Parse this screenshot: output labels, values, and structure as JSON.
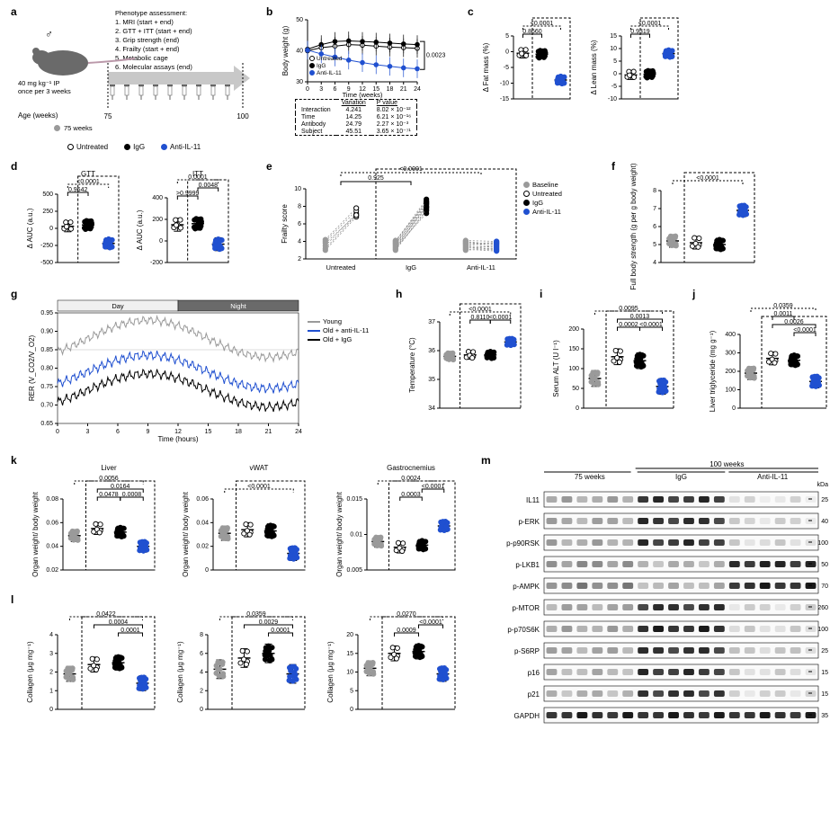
{
  "colors": {
    "untreated_open": "#ffffff",
    "untreated_stroke": "#000000",
    "igg": "#000000",
    "anti": "#2050d0",
    "baseline": "#9a9a9a",
    "young": "#9a9a9a",
    "grid": "#dcdcdc",
    "day_bg": "#f0f0f0",
    "night_bg": "#6a6a6a"
  },
  "panel_a": {
    "label": "a",
    "title_lines": [
      "Phenotype assessment:",
      "1. MRI (start + end)",
      "2. GTT + ITT (start + end)",
      "3. Grip strength (end)",
      "4. Frailty (start + end)",
      "5. Metabolic cage",
      "6. Molecular assays (end)"
    ],
    "dose": "40 mg kg⁻¹ IP",
    "freq": "once per 3 weeks",
    "age_label": "Age (weeks)",
    "start_wk": "75",
    "end_wk": "100",
    "baseline_note": "75 weeks"
  },
  "legend_global": {
    "untreated": "Untreated",
    "igg": "IgG",
    "anti": "Anti-IL-11"
  },
  "panel_b": {
    "label": "b",
    "ylabel": "Body weight (g)",
    "xlabel": "Time (weeks)",
    "ylim": [
      30,
      50
    ],
    "yticks": [
      30,
      40,
      50
    ],
    "xticks": [
      0,
      3,
      6,
      9,
      12,
      15,
      18,
      21,
      24
    ],
    "series": {
      "untreated": [
        40,
        41,
        41.5,
        42,
        41.8,
        41.5,
        41.2,
        41,
        40.8
      ],
      "igg": [
        40.5,
        42,
        43,
        43.2,
        43,
        42.8,
        42.5,
        42.2,
        42
      ],
      "anti": [
        40.2,
        39,
        38,
        37,
        36.2,
        35.5,
        35,
        34.5,
        34.2
      ]
    },
    "err": 3,
    "bracket_p": "0.0023",
    "table": {
      "header": [
        "",
        "Variation",
        "P value"
      ],
      "rows": [
        [
          "Interaction",
          "4.241",
          "8.02 × 10⁻¹²"
        ],
        [
          "Time",
          "14.25",
          "6.21 × 10⁻¹⁶"
        ],
        [
          "Antibody",
          "24.79",
          "2.27 × 10⁻³"
        ],
        [
          "Subject",
          "45.51",
          "3.65 × 10⁻⁷¹"
        ]
      ]
    }
  },
  "panel_c": {
    "label": "c",
    "fat": {
      "ylabel": "Δ Fat mass (%)",
      "ylim": [
        -15,
        5
      ],
      "yticks": [
        -15,
        -10,
        -5,
        0,
        5
      ],
      "p_top": "<0.0001",
      "p_left": "0.8660",
      "groups": [
        "Untreated",
        "IgG",
        "Anti-IL-11"
      ],
      "means": [
        -0.5,
        -0.8,
        -9
      ],
      "scatter_n": [
        6,
        12,
        12
      ]
    },
    "lean": {
      "ylabel": "Δ Lean mass (%)",
      "ylim": [
        -10,
        15
      ],
      "yticks": [
        -10,
        -5,
        0,
        5,
        10,
        15
      ],
      "p_top": "<0.0001",
      "p_left": "0.9319",
      "means": [
        -0.5,
        -0.2,
        8
      ],
      "scatter_n": [
        6,
        12,
        12
      ]
    }
  },
  "panel_d": {
    "label": "d",
    "gtt": {
      "title": "GTT",
      "ylabel": "Δ AUC (a.u.)",
      "ylim": [
        -500,
        500
      ],
      "yticks": [
        -500,
        -250,
        0,
        250,
        500
      ],
      "p_top": "<0.0001",
      "p_left": "0.9642",
      "means": [
        30,
        50,
        -220
      ]
    },
    "itt": {
      "title": "ITT",
      "ylabel": "Δ AUC (a.u.)",
      "ylim": [
        -200,
        400
      ],
      "yticks": [
        -200,
        0,
        200,
        400
      ],
      "p_top": "0.0001",
      "p_mid": "0.0048",
      "p_left": ">0.9999",
      "means": [
        150,
        160,
        -30
      ]
    }
  },
  "panel_e": {
    "label": "e",
    "ylabel": "Frailty score",
    "ylim": [
      2,
      10
    ],
    "yticks": [
      2,
      4,
      6,
      8,
      10
    ],
    "p_top": "<0.0001",
    "p_mid": "0.925",
    "legend": [
      "Baseline",
      "Untreated",
      "IgG",
      "Anti-IL-11"
    ],
    "xgroups": [
      "Untreated",
      "IgG",
      "Anti-IL-11"
    ],
    "pairs": {
      "Untreated": [
        [
          3,
          6.8
        ],
        [
          3.2,
          7
        ],
        [
          3.5,
          7.2
        ],
        [
          4,
          7.5
        ],
        [
          3.8,
          7
        ],
        [
          4.2,
          7.8
        ]
      ],
      "IgG": [
        [
          3,
          7.5
        ],
        [
          3.2,
          8.2
        ],
        [
          3.4,
          7.8
        ],
        [
          3.6,
          8.5
        ],
        [
          3.8,
          8
        ],
        [
          4,
          8.8
        ],
        [
          3.3,
          7.2
        ],
        [
          3.7,
          8.3
        ],
        [
          3.5,
          7.9
        ],
        [
          3.9,
          8.6
        ],
        [
          4.1,
          8.4
        ],
        [
          3.1,
          7.6
        ]
      ],
      "Anti": [
        [
          3,
          3.2
        ],
        [
          3.2,
          3.5
        ],
        [
          3.4,
          3.1
        ],
        [
          3.6,
          3.8
        ],
        [
          3.8,
          3.4
        ],
        [
          4,
          3.6
        ],
        [
          3.3,
          3
        ],
        [
          3.7,
          3.9
        ],
        [
          3.5,
          3.3
        ],
        [
          3.9,
          3.7
        ],
        [
          4.1,
          4
        ],
        [
          3.1,
          2.9
        ]
      ]
    }
  },
  "panel_f": {
    "label": "f",
    "ylabel": "Full body strength\n(g per g body weight)",
    "ylim": [
      4,
      8
    ],
    "yticks": [
      4,
      5,
      6,
      7,
      8
    ],
    "p_top": "<0.0001",
    "groups": [
      "75 wk",
      "Untreated",
      "IgG",
      "Anti-IL-11"
    ],
    "means": [
      5.2,
      5.1,
      5.0,
      6.9
    ]
  },
  "panel_g": {
    "label": "g",
    "ylabel": "RER (V_CO2/V_O2)",
    "xlabel": "Time (hours)",
    "ylim": [
      0.65,
      0.95
    ],
    "yticks": [
      0.65,
      0.7,
      0.75,
      0.8,
      0.85,
      0.9,
      0.95
    ],
    "xlim": [
      0,
      24
    ],
    "xticks": [
      0,
      3,
      6,
      9,
      12,
      15,
      18,
      21,
      24
    ],
    "day_label": "Day",
    "night_label": "Night",
    "day_end": 12,
    "legend": [
      "Young",
      "Old + anti-IL-11",
      "Old + IgG"
    ]
  },
  "panel_h": {
    "label": "h",
    "ylabel": "Temperature (°C)",
    "ylim": [
      34,
      37
    ],
    "yticks": [
      34,
      35,
      36,
      37
    ],
    "p_top": "<0.0001",
    "p_left": "0.8110",
    "p_right": "<0.0001",
    "means": [
      35.8,
      35.85,
      35.85,
      36.3
    ]
  },
  "panel_i": {
    "label": "i",
    "ylabel": "Serum ALT (U l⁻¹)",
    "ylim": [
      0,
      200
    ],
    "yticks": [
      0,
      50,
      100,
      150,
      200
    ],
    "pvals": [
      "0.0095",
      "0.0013",
      "<0.0001",
      "0.0002"
    ],
    "means": [
      75,
      130,
      120,
      55
    ]
  },
  "panel_j": {
    "label": "j",
    "ylabel": "Liver triglyceride (mg g⁻¹)",
    "ylim": [
      0,
      400
    ],
    "yticks": [
      0,
      100,
      200,
      300,
      400
    ],
    "pvals": [
      "0.0359",
      "0.0011",
      "0.0026",
      "<0.0001"
    ],
    "means": [
      190,
      270,
      260,
      145
    ]
  },
  "panel_k": {
    "label": "k",
    "liver": {
      "title": "Liver",
      "ylabel": "Organ weight/\nbody weight",
      "ylim": [
        0.02,
        0.08
      ],
      "yticks": [
        0.02,
        0.04,
        0.06,
        0.08
      ],
      "pvals": [
        "0.0056",
        "0.0164",
        "0.0008",
        "0.0478"
      ],
      "means": [
        0.049,
        0.055,
        0.052,
        0.04
      ]
    },
    "vwat": {
      "title": "vWAT",
      "ylim": [
        0,
        0.06
      ],
      "yticks": [
        0,
        0.02,
        0.04,
        0.06
      ],
      "pvals": [
        "<0.0001"
      ],
      "means": [
        0.031,
        0.034,
        0.033,
        0.014
      ]
    },
    "gastroc": {
      "title": "Gastrocnemius",
      "ylim": [
        0.005,
        0.015
      ],
      "yticks": [
        0.005,
        0.01,
        0.015
      ],
      "pvals": [
        "0.0024",
        "<0.0001",
        "0.0003"
      ],
      "means": [
        0.009,
        0.0082,
        0.0085,
        0.0112
      ]
    }
  },
  "panel_l": {
    "label": "l",
    "liver": {
      "ylabel": "Collagen (μg mg⁻¹)",
      "ylim": [
        0,
        4
      ],
      "yticks": [
        0,
        1,
        2,
        3,
        4
      ],
      "pvals": [
        "0.0422",
        "0.0004",
        "0.0001"
      ],
      "means": [
        1.9,
        2.4,
        2.5,
        1.4
      ]
    },
    "vwat": {
      "ylim": [
        0,
        8
      ],
      "yticks": [
        0,
        2,
        4,
        6,
        8
      ],
      "pvals": [
        "0.0359",
        "0.0029",
        "0.0001"
      ],
      "means": [
        4.3,
        5.5,
        6.0,
        3.8
      ]
    },
    "gastroc": {
      "ylim": [
        0,
        20
      ],
      "yticks": [
        0,
        5,
        10,
        15,
        20
      ],
      "pvals": [
        "0.0270",
        "<0.0001",
        "0.0009"
      ],
      "means": [
        11,
        15,
        15.5,
        9.5
      ]
    }
  },
  "panel_m": {
    "label": "m",
    "col_headers": [
      "75 weeks",
      "IgG",
      "Anti-IL-11"
    ],
    "supheader": "100 weeks",
    "kda_label": "kDa",
    "rows": [
      {
        "name": "IL11",
        "kda": "25"
      },
      {
        "name": "p-ERK",
        "kda": "40"
      },
      {
        "name": "p-p90RSK",
        "kda": "100"
      },
      {
        "name": "p-LKB1",
        "kda": "50"
      },
      {
        "name": "p-AMPK",
        "kda": "70"
      },
      {
        "name": "p-MTOR",
        "kda": "260"
      },
      {
        "name": "p-p70S6K",
        "kda": "100"
      },
      {
        "name": "p-S6RP",
        "kda": "25"
      },
      {
        "name": "p16",
        "kda": "15"
      },
      {
        "name": "p21",
        "kda": "15"
      },
      {
        "name": "GAPDH",
        "kda": "35"
      }
    ],
    "lanes": 6,
    "intensity": {
      "75": [
        0.35,
        0.35,
        0.35,
        0.45,
        0.5,
        0.35,
        0.35,
        0.35,
        0.3,
        0.3,
        0.9
      ],
      "igg": [
        0.85,
        0.85,
        0.85,
        0.3,
        0.3,
        0.85,
        0.9,
        0.85,
        0.85,
        0.85,
        0.9
      ],
      "anti": [
        0.1,
        0.15,
        0.15,
        0.9,
        0.9,
        0.15,
        0.15,
        0.2,
        0.15,
        0.15,
        0.9
      ]
    }
  }
}
